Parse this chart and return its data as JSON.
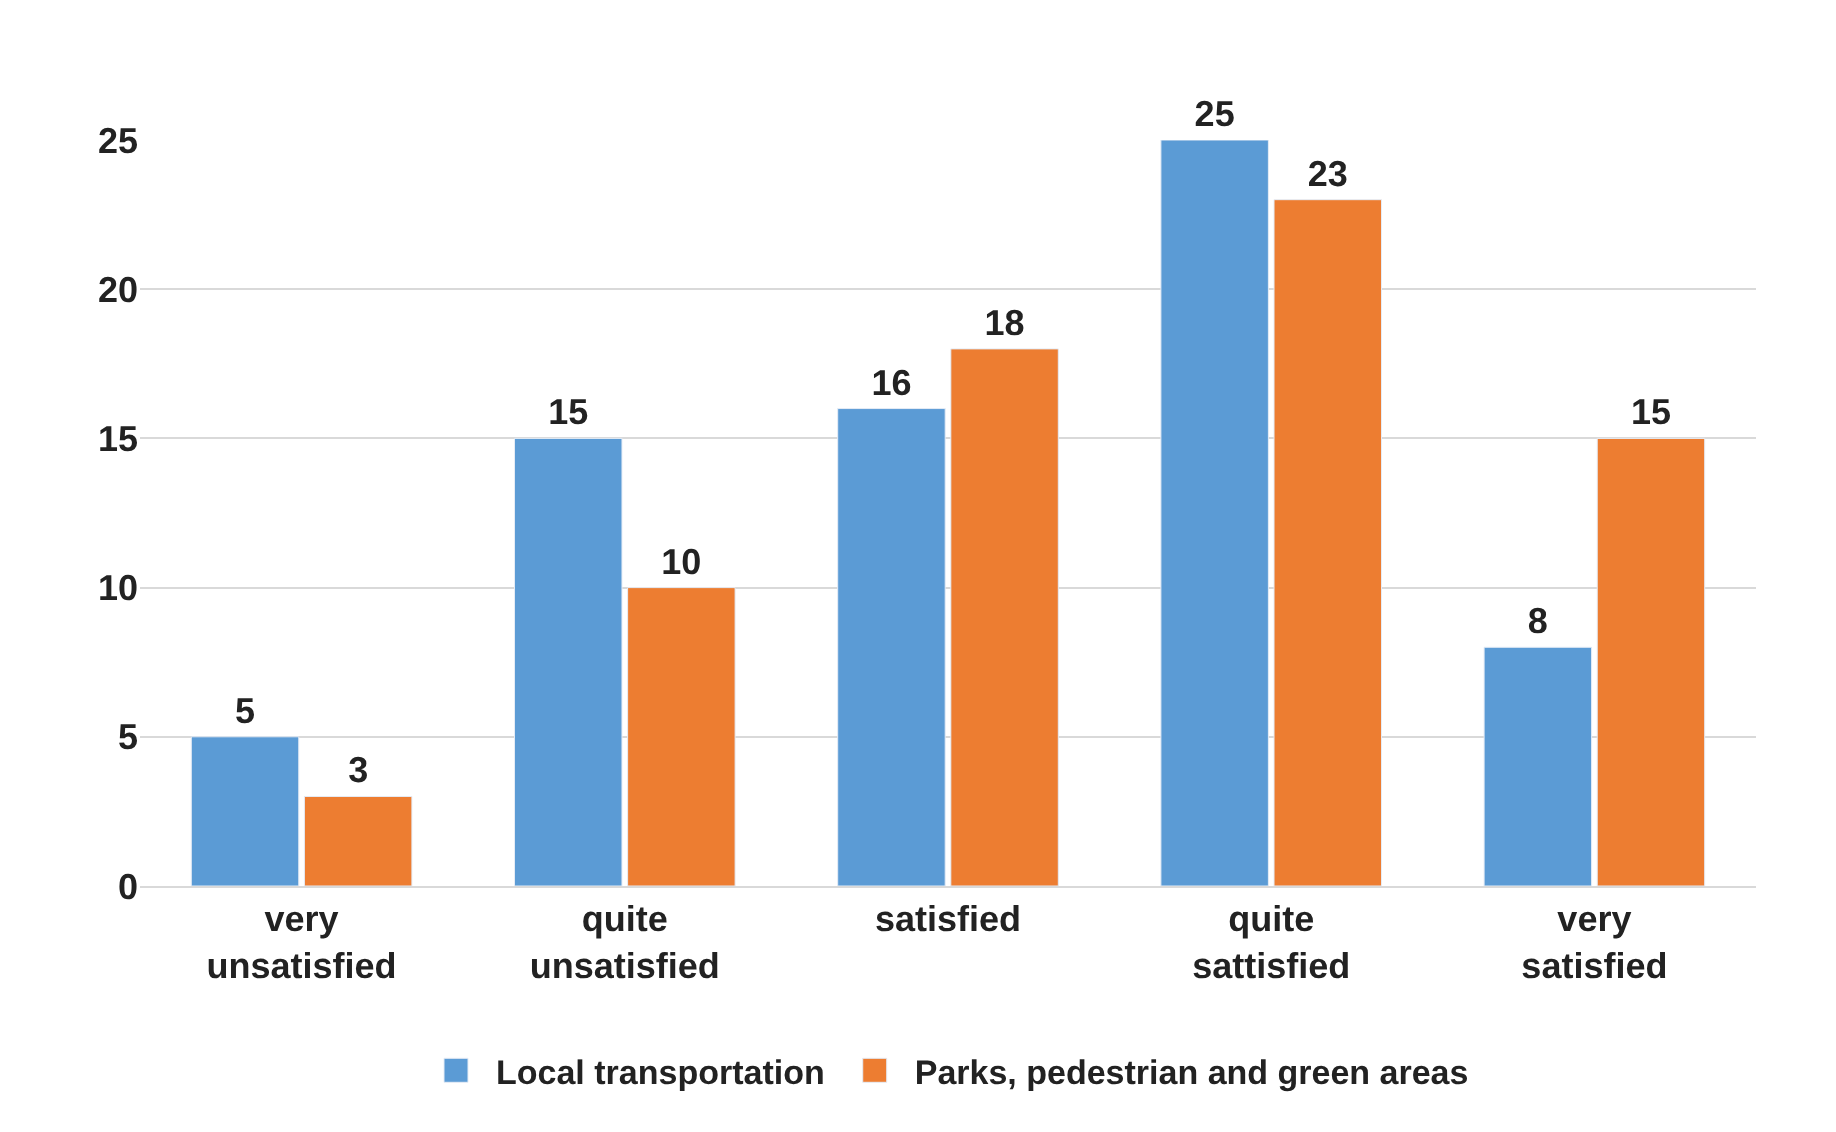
{
  "chart_data": {
    "type": "bar",
    "categories": [
      "very unsatisfied",
      "quite unsatisfied",
      "satisfied",
      "quite sattisfied",
      "very satisfied"
    ],
    "series": [
      {
        "name": "Local transportation",
        "color": "#5b9bd5",
        "values": [
          5,
          15,
          16,
          25,
          8
        ]
      },
      {
        "name": "Parks, pedestrian and green areas",
        "color": "#ed7d31",
        "values": [
          3,
          10,
          18,
          23,
          15
        ]
      }
    ],
    "ylim": [
      0,
      25
    ],
    "yticks": [
      0,
      5,
      10,
      15,
      20,
      25
    ],
    "grid": "y",
    "legend": "bottom",
    "data_labels": true
  }
}
